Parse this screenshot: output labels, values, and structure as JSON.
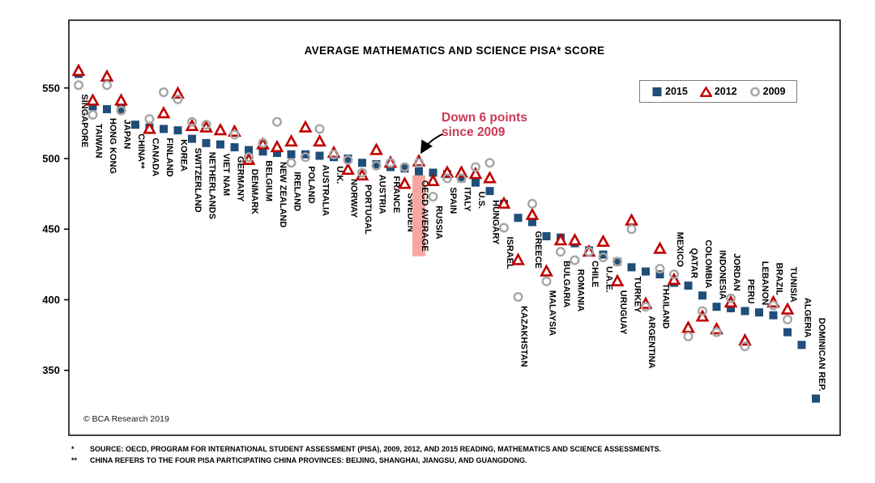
{
  "title": "AVERAGE MATHEMATICS AND SCIENCE PISA* SCORE",
  "copyright": "© BCA Research 2019",
  "annotation": {
    "line1": "Down 6 points",
    "line2": "since 2009"
  },
  "legend": {
    "items": [
      {
        "label": "2015",
        "marker": "square"
      },
      {
        "label": "2012",
        "marker": "triangle"
      },
      {
        "label": "2009",
        "marker": "circle"
      }
    ]
  },
  "footnotes": [
    {
      "marker": "*",
      "text": "SOURCE: OECD, PROGRAM FOR INTERNATIONAL STUDENT ASSESSMENT (PISA), 2009, 2012, AND 2015 READING, MATHEMATICS AND SCIENCE ASSESSMENTS."
    },
    {
      "marker": "**",
      "text": "CHINA REFERS TO THE FOUR PISA PARTICIPATING CHINA PROVINCES: BEIJING, SHANGHAI, JIANGSU, AND GUANGDONG."
    }
  ],
  "colors": {
    "series_2015": "#1F4E79",
    "series_2012": "#C00000",
    "series_2009": "#A6A6A6",
    "highlight_bg": "#F6A8A0",
    "highlight_text": "#C00000",
    "annotation": "#CB3A55",
    "arrow": "#000000"
  },
  "chart_data": {
    "type": "scatter",
    "title": "AVERAGE MATHEMATICS AND SCIENCE PISA* SCORE",
    "xlabel": "",
    "ylabel": "",
    "ylim": [
      304,
      598
    ],
    "yticks": [
      350,
      400,
      450,
      500,
      550
    ],
    "grid": false,
    "legend_position": "top-right",
    "highlight_category": "OECD AVERAGE",
    "annotation_text": "Down 6 points since 2009",
    "categories": [
      "SINGAPORE",
      "TAIWAN",
      "HONG KONG",
      "JAPAN",
      "CHINA**",
      "CANADA",
      "FINLAND",
      "KOREA",
      "SWITZERLAND",
      "NETHERLANDS",
      "VIET NAM",
      "GERMANY",
      "DENMARK",
      "BELGIUM",
      "NEW ZEALAND",
      "IRELAND",
      "POLAND",
      "AUSTRALIA",
      "U.K.",
      "NORWAY",
      "PORTUGAL",
      "AUSTRIA",
      "FRANCE",
      "SWEDEN",
      "OECD AVERAGE",
      "RUSSIA",
      "SPAIN",
      "ITALY",
      "U.S.",
      "HUNGARY",
      "ISRAEL",
      "KAZAKHSTAN",
      "GREECE",
      "MALAYSIA",
      "BULGARIA",
      "ROMANIA",
      "CHILE",
      "U.A.E.",
      "URUGUAY",
      "TURKEY",
      "ARGENTINA",
      "THAILAND",
      "MEXICO",
      "QATAR",
      "COLOMBIA",
      "INDONESIA",
      "JORDAN",
      "PERU",
      "LEBANON",
      "BRAZIL",
      "TUNISIA",
      "ALGERIA",
      "DOMINICAN REP."
    ],
    "series": [
      {
        "name": "2015",
        "marker": "square",
        "color": "#1F4E79",
        "values": [
          560,
          537,
          535,
          535,
          524,
          522,
          521,
          520,
          514,
          511,
          510,
          508,
          506,
          505,
          504,
          503,
          503,
          502,
          501,
          500,
          497,
          496,
          494,
          493,
          491,
          490,
          489,
          486,
          483,
          477,
          468,
          458,
          455,
          445,
          444,
          440,
          435,
          432,
          427,
          423,
          420,
          418,
          412,
          410,
          403,
          395,
          394,
          392,
          391,
          389,
          377,
          368,
          330
        ]
      },
      {
        "name": "2012",
        "marker": "triangle",
        "color": "#C00000",
        "values": [
          562,
          541,
          558,
          541,
          null,
          521,
          532,
          546,
          523,
          522,
          520,
          519,
          499,
          510,
          508,
          512,
          522,
          512,
          504,
          492,
          488,
          506,
          497,
          482,
          498,
          484,
          490,
          490,
          489,
          486,
          468,
          428,
          460,
          420,
          442,
          442,
          434,
          441,
          413,
          456,
          397,
          436,
          414,
          380,
          388,
          379,
          398,
          371,
          null,
          398,
          393,
          null,
          null
        ]
      },
      {
        "name": "2009",
        "marker": "circle",
        "color": "#A6A6A6",
        "values": [
          552,
          531,
          552,
          534,
          null,
          528,
          547,
          542,
          526,
          524,
          null,
          517,
          501,
          511,
          526,
          497,
          501,
          521,
          503,
          499,
          490,
          495,
          497,
          494,
          497,
          473,
          486,
          486,
          494,
          497,
          451,
          402,
          468,
          413,
          434,
          428,
          434,
          430,
          427,
          450,
          395,
          422,
          418,
          374,
          392,
          377,
          401,
          367,
          null,
          396,
          386,
          null,
          null
        ]
      }
    ]
  }
}
